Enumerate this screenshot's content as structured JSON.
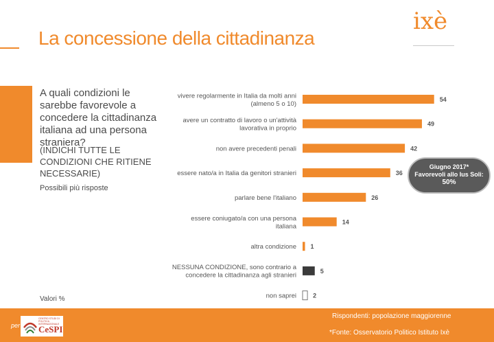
{
  "page": {
    "title": "La concessione della cittadinanza",
    "logo_text": "ixè",
    "question": "A quali condizioni le sarebbe favorevole a concedere la cittadinanza italiana ad una persona straniera?",
    "instruction": "(INDICHI TUTTE LE CONDIZIONI CHE RITIENE NECESSARIE)",
    "multi_note": "Possibili più risposte",
    "units_note": "Valori %",
    "callout": {
      "line1": "Giugno 2017*",
      "line2": "Favorevoli allo Ius Soli:",
      "line3": "50%"
    },
    "footer": {
      "per": "per",
      "partner_small": "CENTRO STUDI DI POLITICA INTERNAZIONALE",
      "partner_name": "CeSPI",
      "respondents": "Rispondenti: popolazione maggiorenne",
      "source": "*Fonte: Osservatorio Politico Istituto Ixè"
    }
  },
  "colors": {
    "accent": "#f08a2c",
    "dark_bar": "#3b3b3b",
    "callout_bg": "#5a5a5a"
  },
  "chart_data": {
    "type": "bar",
    "orientation": "horizontal",
    "categories": [
      [
        "vivere regolarmente in Italia da molti anni",
        "(almeno 5 o 10)"
      ],
      [
        "avere un contratto di lavoro o un'attività",
        "lavorativa in proprio"
      ],
      [
        "non avere precedenti penali"
      ],
      [
        "essere nato/a in Italia da genitori stranieri"
      ],
      [
        "parlare bene l'italiano"
      ],
      [
        "essere coniugato/a con una persona",
        "italiana"
      ],
      [
        "altra condizione"
      ],
      [
        "NESSUNA CONDIZIONE, sono contrario a",
        "concedere la cittadinanza agli stranieri"
      ],
      [
        "non saprei"
      ]
    ],
    "values": [
      54,
      49,
      42,
      36,
      26,
      14,
      1,
      5,
      2
    ],
    "value_labels": [
      "54",
      "49",
      "42",
      "36",
      "26",
      "14",
      "1",
      "5",
      "2"
    ],
    "bar_styles": [
      "orange",
      "orange",
      "orange",
      "orange",
      "orange",
      "orange",
      "orange",
      "dark",
      "outline"
    ],
    "xlim": [
      0,
      60
    ],
    "grid": false,
    "axis_visible": false
  }
}
